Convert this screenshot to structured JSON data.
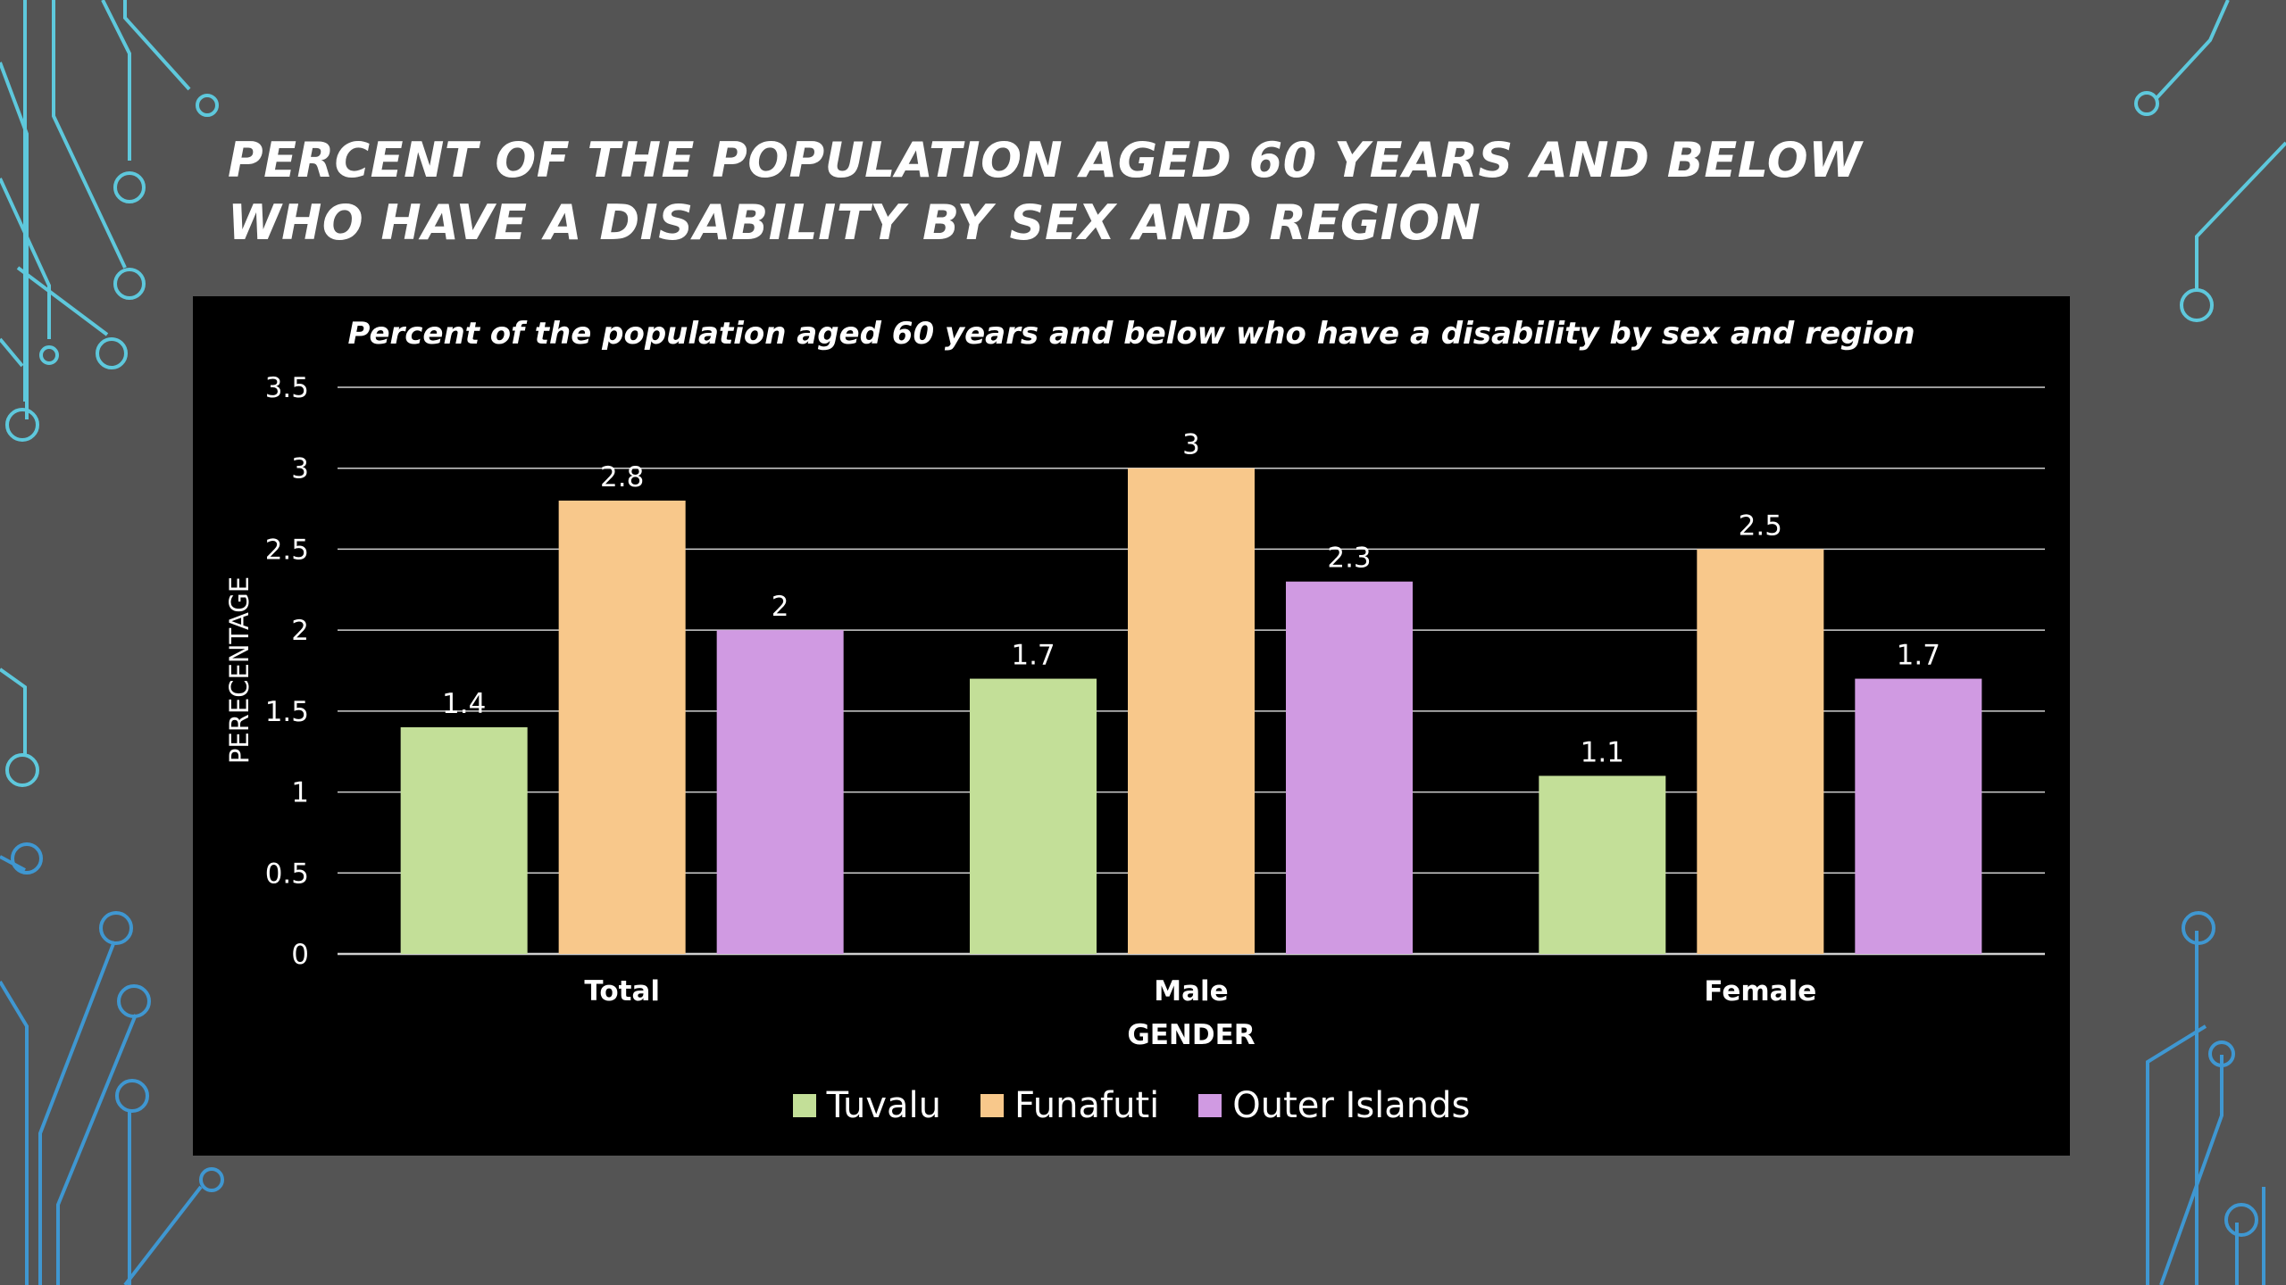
{
  "slide": {
    "title": "PERCENT OF THE POPULATION AGED 60 YEARS AND BELOW WHO HAVE A DISABILITY BY SEX AND REGION"
  },
  "colors": {
    "background": "#545454",
    "panel": "#000000",
    "circuit_upper": "#5ec8dc",
    "circuit_lower": "#3f97d1"
  },
  "chart_data": {
    "type": "bar",
    "title": "Percent of the population aged 60 years and below who have a disability by sex and region",
    "xlabel": "GENDER",
    "ylabel": "PERECENTAGE",
    "categories": [
      "Total",
      "Male",
      "Female"
    ],
    "series": [
      {
        "name": "Tuvalu",
        "color": "#c3df98",
        "values": [
          1.4,
          1.7,
          1.1
        ]
      },
      {
        "name": "Funafuti",
        "color": "#f8c88b",
        "values": [
          2.8,
          3,
          2.5
        ]
      },
      {
        "name": "Outer Islands",
        "color": "#d09ae2",
        "values": [
          2,
          2.3,
          1.7
        ]
      }
    ],
    "ylim": [
      0,
      3.5
    ],
    "yticks": [
      0,
      0.5,
      1,
      1.5,
      2,
      2.5,
      3,
      3.5
    ],
    "ytick_labels": [
      "0",
      "0.5",
      "1",
      "1.5",
      "2",
      "2.5",
      "3",
      "3.5"
    ],
    "value_labels": [
      [
        "1.4",
        "1.7",
        "1.1"
      ],
      [
        "2.8",
        "3",
        "2.5"
      ],
      [
        "2",
        "2.3",
        "1.7"
      ]
    ],
    "grid": true,
    "legend": "bottom"
  }
}
